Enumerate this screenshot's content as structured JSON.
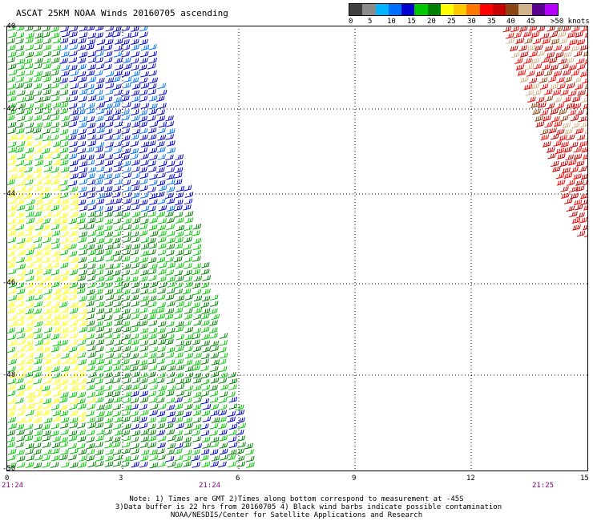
{
  "title": "ASCAT 25KM NOAA Winds 20160705 ascending",
  "legend": {
    "colors": [
      "#404040",
      "#8c8c8c",
      "#00b4ff",
      "#0070ff",
      "#0000d0",
      "#00c800",
      "#008000",
      "#ffff00",
      "#ffc800",
      "#ff7800",
      "#ff0000",
      "#c80000",
      "#8b4513",
      "#d2b48c",
      "#5a0090",
      "#b400ff"
    ],
    "labels": [
      "0",
      "5",
      "10",
      "15",
      "20",
      "25",
      "30",
      "35",
      "40",
      "45",
      ">50 knots"
    ]
  },
  "axes": {
    "x_ticks": [
      "0",
      "3",
      "6",
      "9",
      "12",
      "15"
    ],
    "y_ticks": [
      "-40",
      "-42",
      "-44",
      "-46",
      "-48",
      "-50"
    ]
  },
  "times": [
    "21:24",
    "21:24",
    "21:25"
  ],
  "notes": [
    "Note: 1) Times are GMT 2)Times along bottom correspond to measurement at -45S",
    "3)Data buffer is 22 hrs from 20160705 4) Black wind barbs indicate possible contamination",
    "NOAA/NESDIS/Center for Satellite Applications and Research"
  ],
  "swaths": {
    "left_colors": [
      "#00c800",
      "#008000",
      "#0000d0",
      "#ffff00",
      "#0070ff"
    ],
    "right_colors": [
      "#c80000",
      "#ff0000",
      "#8b4513",
      "#d2b48c"
    ]
  }
}
